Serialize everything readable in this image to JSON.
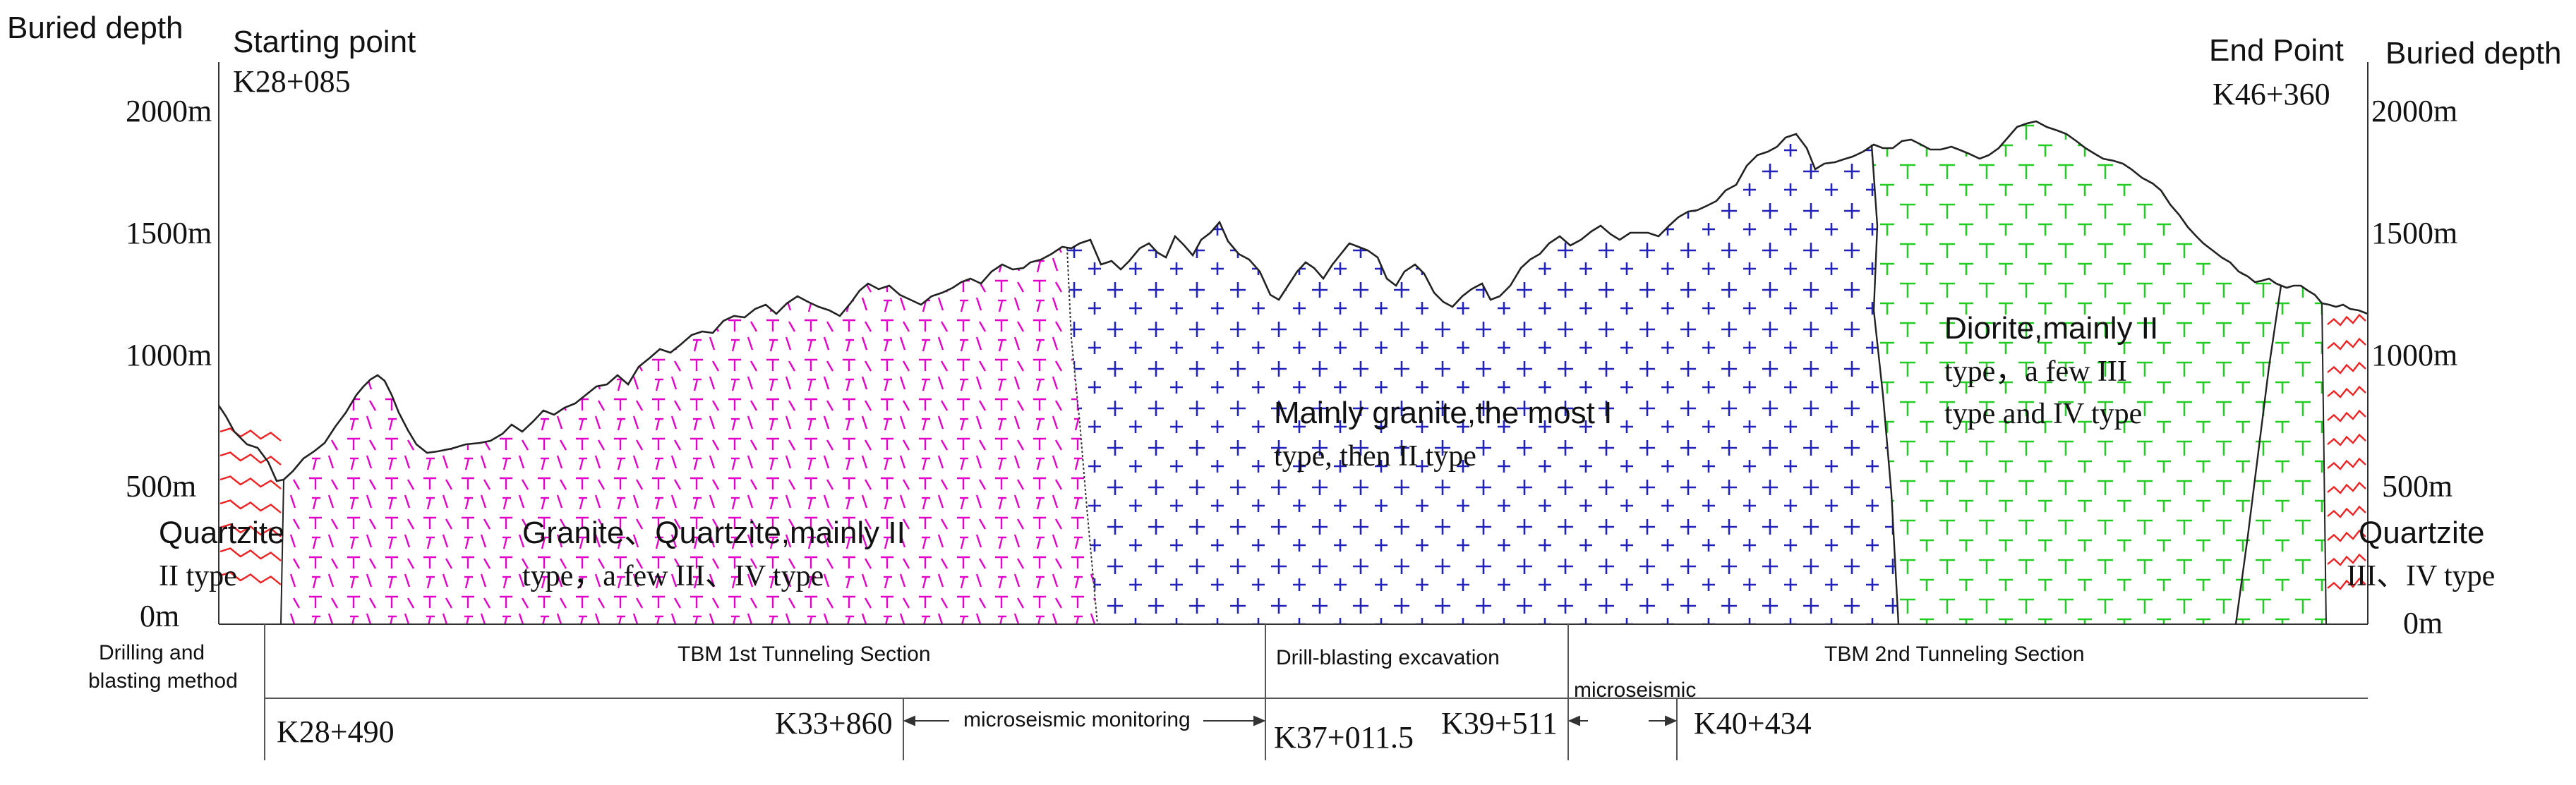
{
  "left_axis": {
    "title": "Buried depth",
    "ticks": [
      "2000m",
      "1500m",
      "1000m",
      "500m",
      "0m"
    ]
  },
  "right_axis": {
    "title": "Buried depth",
    "ticks": [
      "2000m",
      "1500m",
      "1000m",
      "500m",
      "0m"
    ]
  },
  "start": {
    "label": "Starting point",
    "station": "K28+085"
  },
  "end": {
    "label": "End Point",
    "station": "K46+360"
  },
  "zones": {
    "quartzite_left": {
      "name": "Quartzite",
      "desc": "II type"
    },
    "granite_quartzite": {
      "line1": "Granite、Quartzite,mainly II",
      "line2": "type，a few III、IV type"
    },
    "granite": {
      "line1": "Mainly granite,the most I",
      "line2": "type, then II  type"
    },
    "diorite": {
      "line1": "Diorite,mainly II",
      "line2": "type，a few III",
      "line3": "type and IV type"
    },
    "quartzite_right": {
      "name": "Quartzite",
      "desc": "III、IV type"
    }
  },
  "methods": {
    "drilling": [
      "Drilling and",
      "blasting method"
    ],
    "tbm1": "TBM 1st Tunneling Section",
    "drill_blast": "Drill-blasting excavation",
    "microseismic": "microseismic",
    "tbm2": "TBM 2nd Tunneling Section"
  },
  "stations": {
    "k28_490": "K28+490",
    "k33_860": "K33+860",
    "monitoring": "microseismic monitoring",
    "k37_011": "K37+011.5",
    "k39_511": "K39+511",
    "k40_434": "K40+434"
  },
  "colors": {
    "granite_quartzite": "#e100c8",
    "granite": "#2222bb",
    "diorite": "#22cc22",
    "quartzite": "#ee2222",
    "line": "#222222"
  }
}
